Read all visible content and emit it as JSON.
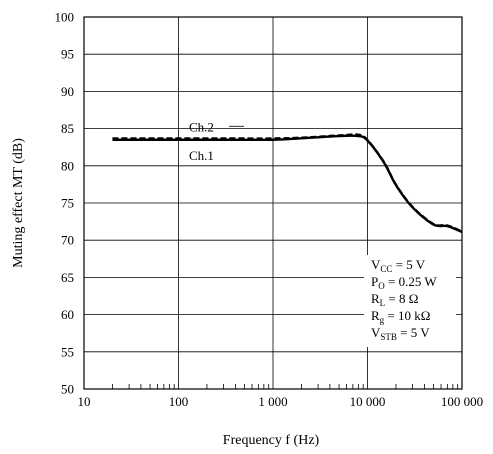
{
  "chart_data": {
    "type": "line",
    "xlabel": "Frequency  f  (Hz)",
    "ylabel": "Muting effect  MT  (dB)",
    "xscale": "log",
    "xlim": [
      10,
      100000
    ],
    "ylim": [
      50,
      100
    ],
    "grid": true,
    "x_tick_labels": [
      "10",
      "100",
      "1 000",
      "10 000",
      "100 000"
    ],
    "y_tick_labels": [
      "50",
      "55",
      "60",
      "65",
      "70",
      "75",
      "80",
      "85",
      "90",
      "95",
      "100"
    ],
    "series": [
      {
        "name": "Ch.2",
        "style": "dashed",
        "x": [
          20,
          50,
          100,
          300,
          1000,
          2000,
          5000,
          8000,
          10000,
          15000,
          20000,
          30000,
          50000,
          70000,
          100000
        ],
        "y": [
          83.7,
          83.7,
          83.7,
          83.7,
          83.7,
          83.8,
          84.1,
          84.2,
          83.5,
          80.5,
          77.5,
          74.5,
          72.2,
          72.0,
          71.2
        ]
      },
      {
        "name": "Ch.1",
        "style": "solid",
        "x": [
          20,
          50,
          100,
          300,
          1000,
          2000,
          5000,
          8000,
          10000,
          15000,
          20000,
          30000,
          50000,
          70000,
          100000
        ],
        "y": [
          83.5,
          83.5,
          83.5,
          83.5,
          83.5,
          83.7,
          84.0,
          84.0,
          83.4,
          80.4,
          77.4,
          74.4,
          72.1,
          71.9,
          71.1
        ]
      }
    ],
    "annotations": [
      {
        "main": "V",
        "sub": "CC",
        "rest": " = 5 V"
      },
      {
        "main": "P",
        "sub": "O",
        "rest": " = 0.25 W"
      },
      {
        "main": "R",
        "sub": "L",
        "rest": " = 8 Ω"
      },
      {
        "main": "R",
        "sub": "g",
        "rest": " = 10 kΩ"
      },
      {
        "main": "V",
        "sub": "STB",
        "rest": " = 5 V"
      }
    ]
  }
}
